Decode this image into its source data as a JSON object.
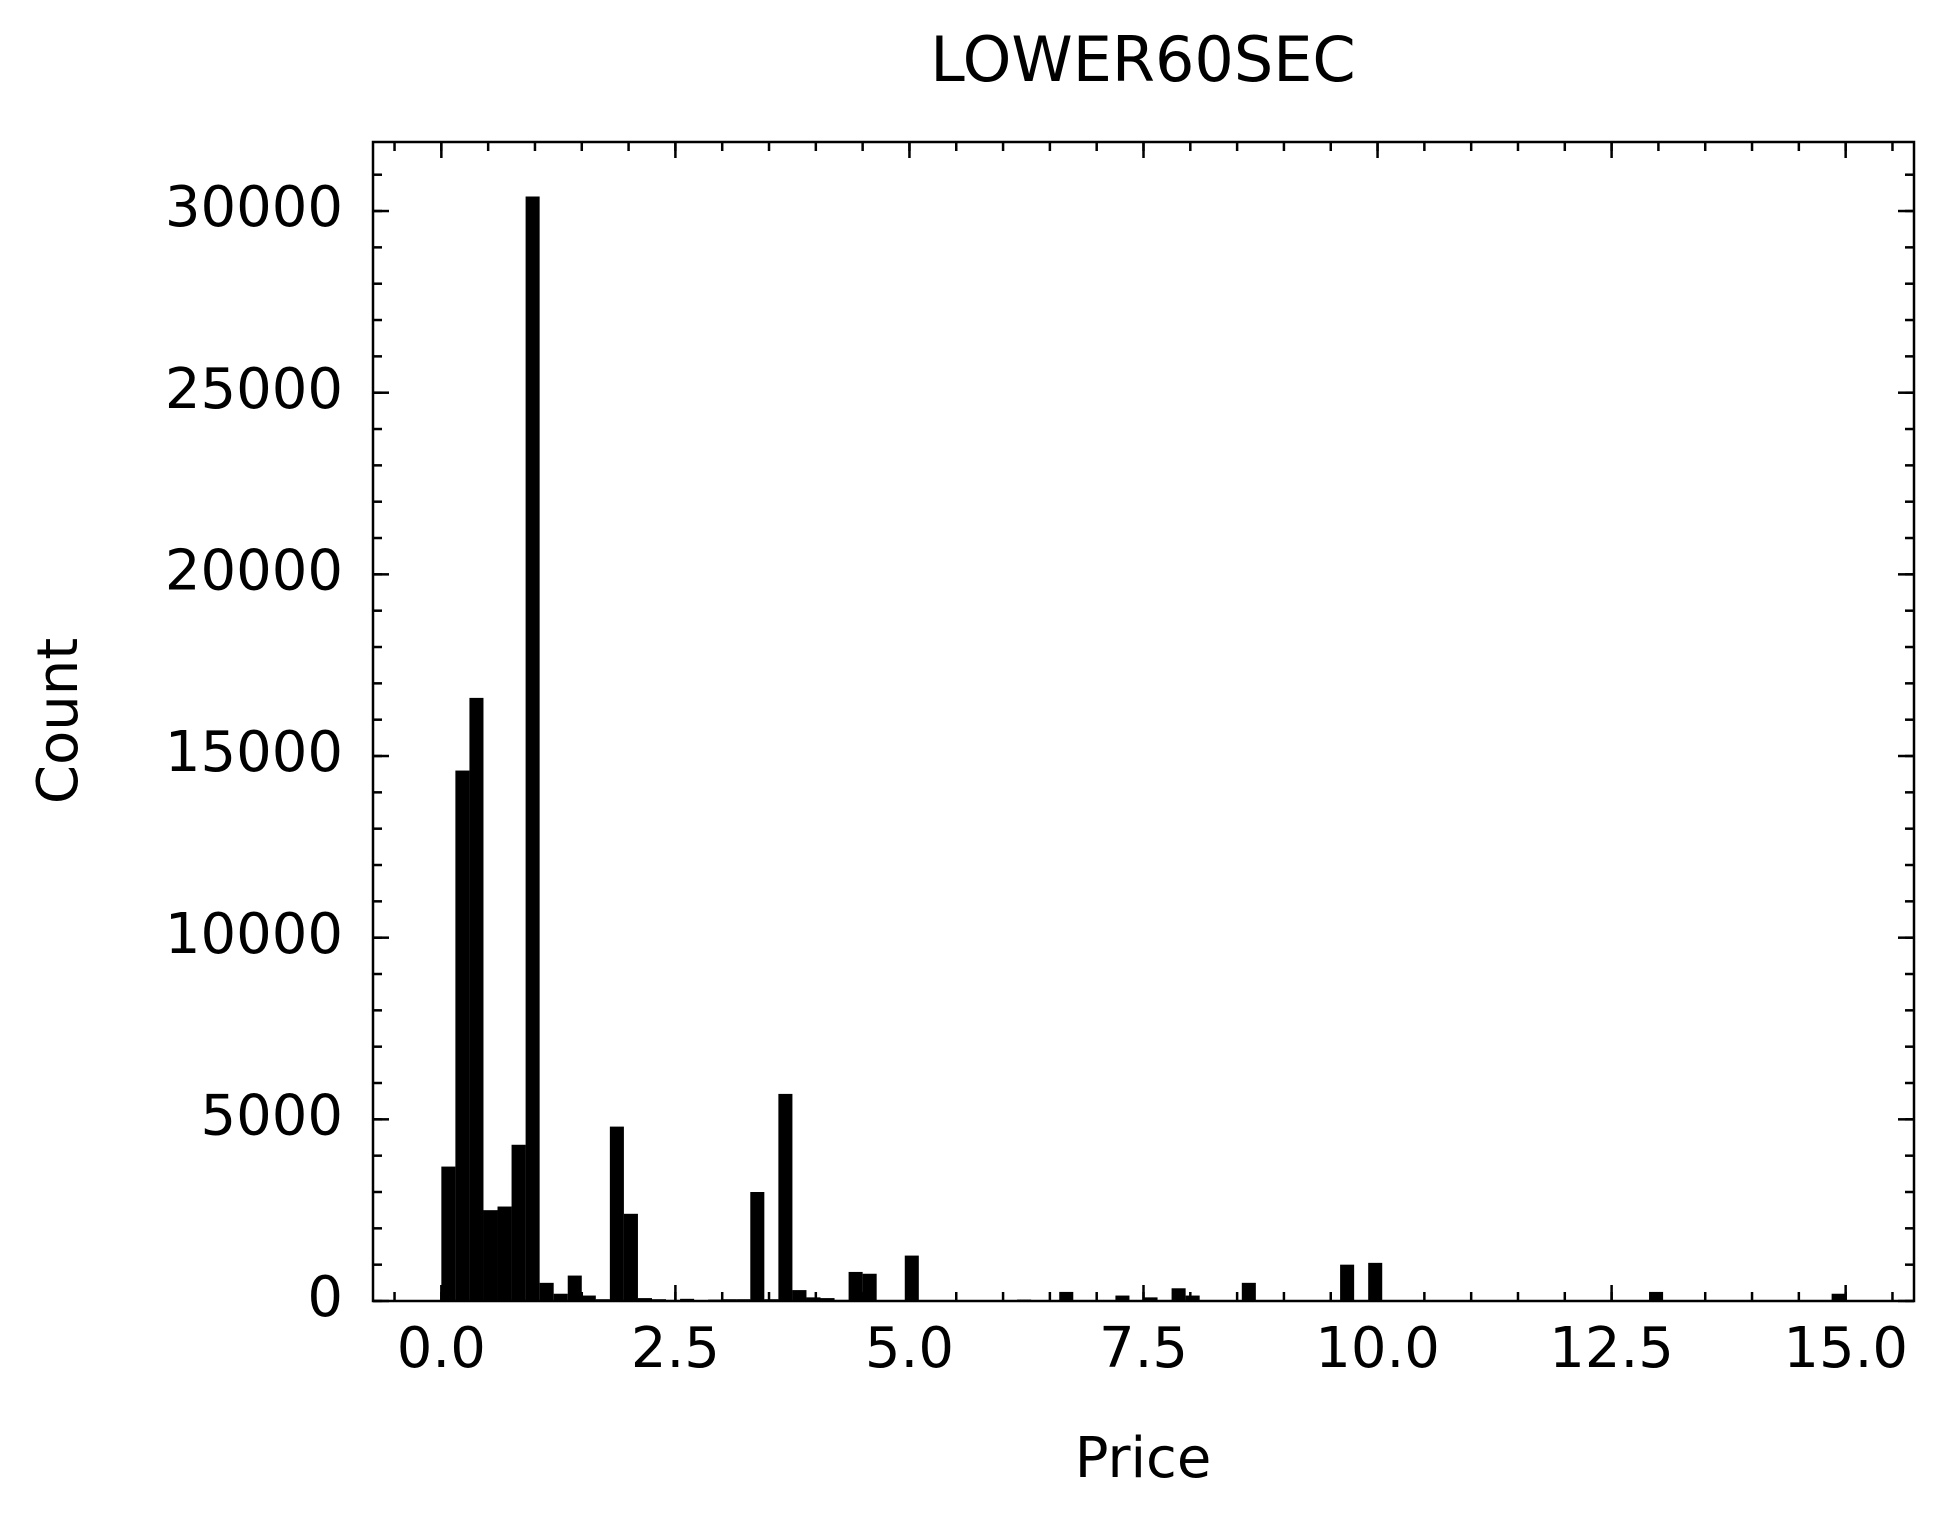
{
  "chart_data": {
    "type": "histogram",
    "title": "LOWER60SEC",
    "x_label": "Price",
    "y_label": "Count",
    "color": "#000000",
    "bins": [
      0,
      0.15,
      0.3,
      0.45,
      0.6,
      0.75,
      0.9,
      1.05,
      1.2,
      1.35,
      1.5,
      1.65,
      1.8,
      1.95,
      2.1,
      2.25,
      2.4,
      2.55,
      2.7,
      2.85,
      3,
      3.15,
      3.3,
      3.45,
      3.6,
      3.75,
      3.9,
      4.05,
      4.2,
      4.35,
      4.5,
      4.65,
      4.8,
      4.95,
      5.1,
      5.25,
      5.4,
      5.55,
      5.7,
      5.85,
      6,
      6.15,
      6.3,
      6.45,
      6.6,
      6.75,
      6.9,
      7.05,
      7.2,
      7.35,
      7.5,
      7.65,
      7.8,
      7.95,
      8.1,
      8.25,
      8.4,
      8.55,
      8.7,
      8.85,
      9,
      9.15,
      9.3,
      9.45,
      9.6,
      9.75,
      9.9,
      10.05,
      10.2,
      10.35,
      10.5,
      10.65,
      10.8,
      10.95,
      11.1,
      11.25,
      11.4,
      11.55,
      11.7,
      11.85,
      12,
      12.15,
      12.3,
      12.45,
      12.6,
      12.75,
      12.9,
      13.05,
      13.2,
      13.35,
      13.5,
      13.65,
      13.8,
      13.95,
      14.1,
      14.25,
      14.4,
      14.55,
      14.7,
      14.85,
      15
    ],
    "counts": [
      3700,
      14600,
      16600,
      2500,
      2600,
      4300,
      30400,
      500,
      200,
      700,
      150,
      50,
      4800,
      2400,
      80,
      50,
      30,
      60,
      20,
      40,
      50,
      50,
      3000,
      50,
      5700,
      300,
      100,
      80,
      30,
      800,
      750,
      0,
      0,
      1250,
      20,
      20,
      10,
      10,
      10,
      10,
      10,
      40,
      10,
      10,
      250,
      10,
      10,
      10,
      150,
      10,
      100,
      10,
      350,
      150,
      10,
      10,
      10,
      500,
      10,
      10,
      0,
      0,
      0,
      0,
      1000,
      0,
      1050,
      0,
      0,
      0,
      0,
      0,
      0,
      0,
      0,
      0,
      0,
      0,
      0,
      0,
      0,
      0,
      0,
      0,
      0,
      0,
      250,
      0,
      0,
      0,
      0,
      0,
      0,
      0,
      0,
      0,
      0,
      0,
      0,
      200
    ],
    "xlim": [
      -0.73,
      15.73
    ],
    "ylim": [
      0,
      31900
    ],
    "xticks": [
      {
        "value": 0,
        "label": "0.0"
      },
      {
        "value": 2.5,
        "label": "2.5"
      },
      {
        "value": 5,
        "label": "5.0"
      },
      {
        "value": 7.5,
        "label": "7.5"
      },
      {
        "value": 10,
        "label": "10.0"
      },
      {
        "value": 12.5,
        "label": "12.5"
      },
      {
        "value": 15,
        "label": "15.0"
      }
    ],
    "yticks": [
      0,
      5000,
      10000,
      15000,
      20000,
      25000,
      30000
    ]
  }
}
